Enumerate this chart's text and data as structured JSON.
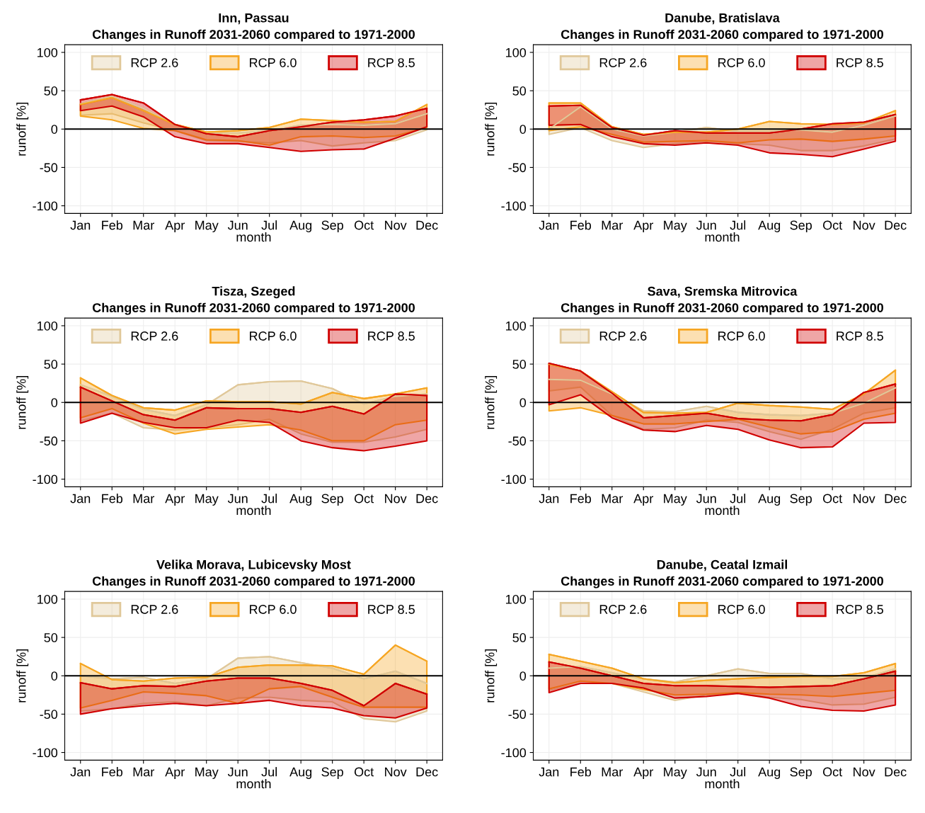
{
  "chart_data": [
    {
      "type": "line",
      "title": "Inn, Passau",
      "subtitle": "Changes in Runoff 2031-2060 compared to 1971-2000",
      "xlabel": "month",
      "ylabel": "runoff [%]",
      "categories": [
        "Jan",
        "Feb",
        "Mar",
        "Apr",
        "May",
        "Jun",
        "Jul",
        "Aug",
        "Sep",
        "Oct",
        "Nov",
        "Dec"
      ],
      "ylim": [
        -110,
        110
      ],
      "yticks": [
        -100,
        -50,
        0,
        50,
        100
      ],
      "grid": true,
      "legend": "top",
      "ref_lines": [
        {
          "axis": "y",
          "value": 0,
          "color": "#000000"
        }
      ],
      "series": [
        {
          "name": "RCP 2.6",
          "color": "#e0c89a",
          "lower": [
            18,
            20,
            8,
            -2,
            -15,
            -16,
            -18,
            -15,
            -22,
            -18,
            -15,
            -1
          ],
          "values": [
            33,
            43,
            27,
            6,
            -5,
            -5,
            -2,
            5,
            6,
            5,
            7,
            20
          ],
          "upper": [
            33,
            43,
            27,
            6,
            -5,
            -5,
            -2,
            5,
            6,
            5,
            7,
            20
          ]
        },
        {
          "name": "RCP 6.0",
          "color": "#f6a623",
          "lower": [
            17,
            12,
            1,
            -2,
            -14,
            -15,
            -21,
            -10,
            -9,
            -11,
            -9,
            2
          ],
          "values": [
            32,
            41,
            24,
            6,
            -4,
            -2,
            2,
            13,
            11,
            9,
            10,
            32
          ],
          "upper": [
            32,
            41,
            24,
            6,
            -4,
            -2,
            2,
            13,
            11,
            9,
            10,
            32
          ]
        },
        {
          "name": "RCP 8.5",
          "color": "#d00000",
          "lower": [
            24,
            30,
            16,
            -10,
            -19,
            -19,
            -24,
            -29,
            -27,
            -26,
            -12,
            3
          ],
          "values": [
            38,
            45,
            34,
            6,
            -6,
            -10,
            -2,
            3,
            9,
            12,
            17,
            27
          ],
          "upper": [
            38,
            45,
            34,
            6,
            -6,
            -10,
            -2,
            3,
            9,
            12,
            17,
            27
          ]
        }
      ]
    },
    {
      "type": "line",
      "title": "Danube, Bratislava",
      "subtitle": "Changes in Runoff 2031-2060 compared to 1971-2000",
      "xlabel": "month",
      "ylabel": "runoff [%]",
      "categories": [
        "Jan",
        "Feb",
        "Mar",
        "Apr",
        "May",
        "Jun",
        "Jul",
        "Aug",
        "Sep",
        "Oct",
        "Nov",
        "Dec"
      ],
      "ylim": [
        -110,
        110
      ],
      "yticks": [
        -100,
        -50,
        0,
        50,
        100
      ],
      "grid": true,
      "legend": "top",
      "ref_lines": [
        {
          "axis": "y",
          "value": 0,
          "color": "#000000"
        }
      ],
      "series": [
        {
          "name": "RCP 2.6",
          "color": "#e0c89a",
          "lower": [
            -7,
            2,
            -15,
            -24,
            -19,
            -16,
            -19,
            -21,
            -28,
            -28,
            -22,
            -13
          ],
          "values": [
            0,
            29,
            0,
            -9,
            -4,
            2,
            -3,
            -3,
            -1,
            -4,
            5,
            17
          ],
          "upper": [
            0,
            29,
            0,
            -9,
            -4,
            2,
            -3,
            -3,
            -1,
            -4,
            5,
            17
          ]
        },
        {
          "name": "RCP 6.0",
          "color": "#f6a623",
          "lower": [
            -2,
            3,
            -7,
            -17,
            -16,
            -15,
            -18,
            -14,
            -13,
            -16,
            -13,
            -9
          ],
          "values": [
            34,
            34,
            3,
            -7,
            -4,
            -4,
            0,
            10,
            7,
            6,
            8,
            24
          ],
          "upper": [
            34,
            34,
            3,
            -7,
            -4,
            -4,
            0,
            10,
            7,
            6,
            8,
            24
          ]
        },
        {
          "name": "RCP 8.5",
          "color": "#d00000",
          "lower": [
            5,
            6,
            -10,
            -19,
            -21,
            -18,
            -21,
            -31,
            -33,
            -36,
            -26,
            -16
          ],
          "values": [
            30,
            31,
            2,
            -8,
            -2,
            -5,
            -5,
            -5,
            0,
            7,
            9,
            19
          ],
          "upper": [
            30,
            31,
            2,
            -8,
            -2,
            -5,
            -5,
            -5,
            0,
            7,
            9,
            19
          ]
        }
      ]
    },
    {
      "type": "line",
      "title": "Tisza, Szeged",
      "subtitle": "Changes in Runoff 2031-2060 compared to 1971-2000",
      "xlabel": "month",
      "ylabel": "runoff [%]",
      "categories": [
        "Jan",
        "Feb",
        "Mar",
        "Apr",
        "May",
        "Jun",
        "Jul",
        "Aug",
        "Sep",
        "Oct",
        "Nov",
        "Dec"
      ],
      "ylim": [
        -110,
        110
      ],
      "yticks": [
        -100,
        -50,
        0,
        50,
        100
      ],
      "grid": true,
      "legend": "top",
      "ref_lines": [
        {
          "axis": "y",
          "value": 0,
          "color": "#000000"
        }
      ],
      "series": [
        {
          "name": "RCP 2.6",
          "color": "#e0c89a",
          "lower": [
            -24,
            -14,
            -33,
            -36,
            -33,
            -29,
            -22,
            -41,
            -52,
            -52,
            -45,
            -35
          ],
          "values": [
            23,
            8,
            -9,
            -17,
            -3,
            23,
            27,
            28,
            18,
            -2,
            8,
            11
          ],
          "upper": [
            23,
            8,
            -9,
            -17,
            -3,
            23,
            27,
            28,
            18,
            -2,
            8,
            11
          ]
        },
        {
          "name": "RCP 6.0",
          "color": "#f6a623",
          "lower": [
            -20,
            -8,
            -27,
            -41,
            -35,
            -32,
            -29,
            -36,
            -50,
            -50,
            -29,
            -23
          ],
          "values": [
            32,
            9,
            -7,
            -10,
            2,
            1,
            1,
            -2,
            13,
            5,
            11,
            19
          ],
          "upper": [
            32,
            9,
            -7,
            -10,
            2,
            1,
            1,
            -2,
            13,
            5,
            11,
            19
          ]
        },
        {
          "name": "RCP 8.5",
          "color": "#d00000",
          "lower": [
            -27,
            -14,
            -26,
            -33,
            -33,
            -23,
            -26,
            -50,
            -59,
            -63,
            -57,
            -50
          ],
          "values": [
            20,
            2,
            -16,
            -23,
            -7,
            -8,
            -8,
            -13,
            -5,
            -15,
            11,
            9
          ],
          "upper": [
            20,
            2,
            -16,
            -23,
            -7,
            -8,
            -8,
            -13,
            -5,
            -15,
            11,
            9
          ]
        }
      ]
    },
    {
      "type": "line",
      "title": "Sava, Sremska Mitrovica",
      "subtitle": "Changes in Runoff 2031-2060 compared to 1971-2000",
      "xlabel": "month",
      "ylabel": "runoff [%]",
      "categories": [
        "Jan",
        "Feb",
        "Mar",
        "Apr",
        "May",
        "Jun",
        "Jul",
        "Aug",
        "Sep",
        "Oct",
        "Nov",
        "Dec"
      ],
      "ylim": [
        -110,
        110
      ],
      "yticks": [
        -100,
        -50,
        0,
        50,
        100
      ],
      "grid": true,
      "legend": "top",
      "ref_lines": [
        {
          "axis": "y",
          "value": 0,
          "color": "#000000"
        }
      ],
      "series": [
        {
          "name": "RCP 2.6",
          "color": "#e0c89a",
          "lower": [
            15,
            20,
            -17,
            -35,
            -33,
            -23,
            -26,
            -38,
            -48,
            -35,
            -14,
            -7
          ],
          "values": [
            30,
            29,
            11,
            -11,
            -12,
            -5,
            -13,
            -16,
            -17,
            -14,
            -1,
            19
          ],
          "upper": [
            30,
            29,
            11,
            -11,
            -12,
            -5,
            -13,
            -16,
            -17,
            -14,
            -1,
            19
          ]
        },
        {
          "name": "RCP 6.0",
          "color": "#f6a623",
          "lower": [
            -11,
            -7,
            -17,
            -28,
            -28,
            -25,
            -22,
            -32,
            -41,
            -38,
            -22,
            -14
          ],
          "values": [
            50,
            41,
            14,
            -13,
            -14,
            -13,
            -1,
            -4,
            -6,
            -9,
            11,
            42
          ],
          "upper": [
            50,
            41,
            14,
            -13,
            -14,
            -13,
            -1,
            -4,
            -6,
            -9,
            11,
            42
          ]
        },
        {
          "name": "RCP 8.5",
          "color": "#d00000",
          "lower": [
            -3,
            10,
            -20,
            -36,
            -38,
            -30,
            -35,
            -49,
            -59,
            -58,
            -27,
            -26
          ],
          "values": [
            51,
            41,
            12,
            -20,
            -17,
            -14,
            -21,
            -23,
            -24,
            -16,
            13,
            24
          ],
          "upper": [
            51,
            41,
            12,
            -20,
            -17,
            -14,
            -21,
            -23,
            -24,
            -16,
            13,
            24
          ]
        }
      ]
    },
    {
      "type": "line",
      "title": "Velika Morava, Lubicevsky Most",
      "subtitle": "Changes in Runoff 2031-2060 compared to 1971-2000",
      "xlabel": "month",
      "ylabel": "runoff [%]",
      "categories": [
        "Jan",
        "Feb",
        "Mar",
        "Apr",
        "May",
        "Jun",
        "Jul",
        "Aug",
        "Sep",
        "Oct",
        "Nov",
        "Dec"
      ],
      "ylim": [
        -110,
        110
      ],
      "yticks": [
        -100,
        -50,
        0,
        50,
        100
      ],
      "grid": true,
      "legend": "top",
      "ref_lines": [
        {
          "axis": "y",
          "value": 0,
          "color": "#000000"
        }
      ],
      "series": [
        {
          "name": "RCP 2.6",
          "color": "#e0c89a",
          "lower": [
            -46,
            -43,
            -36,
            -34,
            -39,
            -29,
            -28,
            -32,
            -34,
            -56,
            -60,
            -46
          ],
          "values": [
            0,
            -4,
            -2,
            -10,
            -4,
            23,
            25,
            17,
            10,
            -4,
            6,
            -10
          ],
          "upper": [
            0,
            -4,
            -2,
            -10,
            -4,
            23,
            25,
            17,
            10,
            -4,
            6,
            -10
          ]
        },
        {
          "name": "RCP 6.0",
          "color": "#f6a623",
          "lower": [
            -42,
            -32,
            -21,
            -23,
            -26,
            -36,
            -17,
            -14,
            -28,
            -41,
            -41,
            -41
          ],
          "values": [
            16,
            -5,
            -7,
            -3,
            -2,
            11,
            14,
            14,
            13,
            2,
            40,
            19
          ],
          "upper": [
            16,
            -5,
            -7,
            -3,
            -2,
            11,
            14,
            14,
            13,
            2,
            40,
            19
          ]
        },
        {
          "name": "RCP 8.5",
          "color": "#d00000",
          "lower": [
            -50,
            -43,
            -39,
            -36,
            -39,
            -36,
            -32,
            -39,
            -42,
            -52,
            -55,
            -42
          ],
          "values": [
            -9,
            -17,
            -13,
            -14,
            -7,
            -3,
            -3,
            -10,
            -19,
            -39,
            -10,
            -24
          ],
          "upper": [
            -9,
            -17,
            -13,
            -14,
            -7,
            -3,
            -3,
            -10,
            -19,
            -39,
            -10,
            -24
          ]
        }
      ]
    },
    {
      "type": "line",
      "title": "Danube, Ceatal Izmail",
      "subtitle": "Changes in Runoff 2031-2060 compared to 1971-2000",
      "xlabel": "month",
      "ylabel": "runoff [%]",
      "categories": [
        "Jan",
        "Feb",
        "Mar",
        "Apr",
        "May",
        "Jun",
        "Jul",
        "Aug",
        "Sep",
        "Oct",
        "Nov",
        "Dec"
      ],
      "ylim": [
        -110,
        110
      ],
      "yticks": [
        -100,
        -50,
        0,
        50,
        100
      ],
      "grid": true,
      "legend": "top",
      "ref_lines": [
        {
          "axis": "y",
          "value": 0,
          "color": "#000000"
        }
      ],
      "series": [
        {
          "name": "RCP 2.6",
          "color": "#e0c89a",
          "lower": [
            -19,
            -10,
            -10,
            -21,
            -32,
            -25,
            -22,
            -28,
            -31,
            -38,
            -37,
            -28
          ],
          "values": [
            10,
            12,
            4,
            -4,
            -8,
            0,
            9,
            3,
            3,
            -4,
            -3,
            9
          ],
          "upper": [
            10,
            12,
            4,
            -4,
            -8,
            0,
            9,
            3,
            3,
            -4,
            -3,
            9
          ]
        },
        {
          "name": "RCP 6.0",
          "color": "#f6a623",
          "lower": [
            -17,
            -7,
            -10,
            -18,
            -25,
            -24,
            -22,
            -24,
            -25,
            -27,
            -23,
            -19
          ],
          "values": [
            28,
            19,
            10,
            -4,
            -9,
            -6,
            -4,
            -2,
            -1,
            -1,
            4,
            16
          ],
          "upper": [
            28,
            19,
            10,
            -4,
            -9,
            -6,
            -4,
            -2,
            -1,
            -1,
            4,
            16
          ]
        },
        {
          "name": "RCP 8.5",
          "color": "#d00000",
          "lower": [
            -22,
            -10,
            -10,
            -16,
            -29,
            -27,
            -23,
            -29,
            -40,
            -45,
            -46,
            -38
          ],
          "values": [
            18,
            10,
            0,
            -10,
            -13,
            -13,
            -14,
            -15,
            -14,
            -13,
            -4,
            6
          ],
          "upper": [
            18,
            10,
            0,
            -10,
            -13,
            -13,
            -14,
            -15,
            -14,
            -13,
            -4,
            6
          ]
        }
      ]
    }
  ]
}
